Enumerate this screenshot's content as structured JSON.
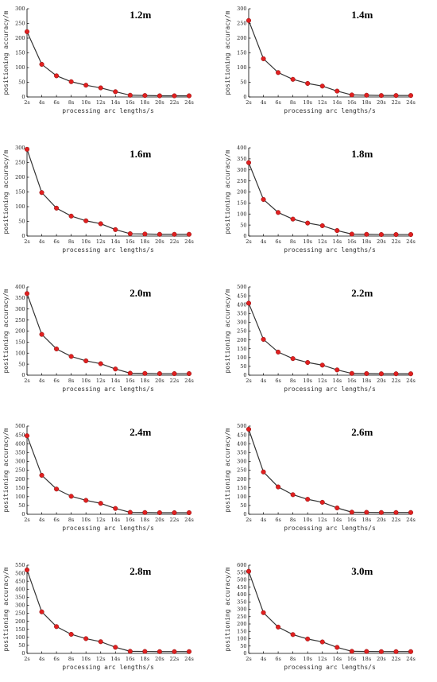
{
  "colors": {
    "line": "#333333",
    "marker_fill": "#e02020",
    "marker_edge": "#8b1010",
    "axis": "#000000"
  },
  "chart_data": [
    {
      "type": "line",
      "title": "1.2m",
      "xlabel": "processing arc lengths/s",
      "ylabel": "positioning accuracy/m",
      "categories": [
        "2s",
        "4s",
        "6s",
        "8s",
        "10s",
        "12s",
        "14s",
        "16s",
        "18s",
        "20s",
        "22s",
        "24s"
      ],
      "ylim": [
        0,
        300
      ],
      "yticks": [
        0,
        50,
        100,
        150,
        200,
        250,
        300
      ],
      "series": [
        {
          "values": [
            222,
            111,
            72,
            52,
            40,
            31,
            18,
            6,
            5,
            4,
            4,
            4
          ]
        }
      ],
      "grid": false
    },
    {
      "type": "line",
      "title": "1.4m",
      "xlabel": "processing arc lengths/s",
      "ylabel": "positioning accuracy/m",
      "categories": [
        "2s",
        "4s",
        "6s",
        "8s",
        "10s",
        "12s",
        "14s",
        "16s",
        "18s",
        "20s",
        "22s",
        "24s"
      ],
      "ylim": [
        0,
        300
      ],
      "yticks": [
        0,
        50,
        100,
        150,
        200,
        250,
        300
      ],
      "series": [
        {
          "values": [
            260,
            130,
            83,
            60,
            46,
            37,
            20,
            7,
            6,
            5,
            5,
            5
          ]
        }
      ],
      "grid": false
    },
    {
      "type": "line",
      "title": "1.6m",
      "xlabel": "processing arc lengths/s",
      "ylabel": "positioning accuracy/m",
      "categories": [
        "2s",
        "4s",
        "6s",
        "8s",
        "10s",
        "12s",
        "14s",
        "16s",
        "18s",
        "20s",
        "22s",
        "24s"
      ],
      "ylim": [
        0,
        300
      ],
      "yticks": [
        0,
        50,
        100,
        150,
        200,
        250,
        300
      ],
      "series": [
        {
          "values": [
            295,
            148,
            95,
            68,
            52,
            42,
            22,
            8,
            7,
            6,
            6,
            6
          ]
        }
      ],
      "grid": false
    },
    {
      "type": "line",
      "title": "1.8m",
      "xlabel": "processing arc lengths/s",
      "ylabel": "positioning accuracy/m",
      "categories": [
        "2s",
        "4s",
        "6s",
        "8s",
        "10s",
        "12s",
        "14s",
        "16s",
        "18s",
        "20s",
        "22s",
        "24s"
      ],
      "ylim": [
        0,
        400
      ],
      "yticks": [
        0,
        50,
        100,
        150,
        200,
        250,
        300,
        350,
        400
      ],
      "series": [
        {
          "values": [
            333,
            166,
            107,
            77,
            59,
            47,
            25,
            9,
            8,
            7,
            7,
            7
          ]
        }
      ],
      "grid": false
    },
    {
      "type": "line",
      "title": "2.0m",
      "xlabel": "processing arc lengths/s",
      "ylabel": "positioning accuracy/m",
      "categories": [
        "2s",
        "4s",
        "6s",
        "8s",
        "10s",
        "12s",
        "14s",
        "16s",
        "18s",
        "20s",
        "22s",
        "24s"
      ],
      "ylim": [
        0,
        400
      ],
      "yticks": [
        0,
        50,
        100,
        150,
        200,
        250,
        300,
        350,
        400
      ],
      "series": [
        {
          "values": [
            370,
            185,
            119,
            85,
            65,
            52,
            28,
            9,
            8,
            7,
            7,
            7
          ]
        }
      ],
      "grid": false
    },
    {
      "type": "line",
      "title": "2.2m",
      "xlabel": "processing arc lengths/s",
      "ylabel": "positioning accuracy/m",
      "categories": [
        "2s",
        "4s",
        "6s",
        "8s",
        "10s",
        "12s",
        "14s",
        "16s",
        "18s",
        "20s",
        "22s",
        "24s"
      ],
      "ylim": [
        0,
        500
      ],
      "yticks": [
        0,
        50,
        100,
        150,
        200,
        250,
        300,
        350,
        400,
        450,
        500
      ],
      "series": [
        {
          "values": [
            408,
            203,
            131,
            94,
            72,
            57,
            30,
            10,
            9,
            8,
            8,
            8
          ]
        }
      ],
      "grid": false
    },
    {
      "type": "line",
      "title": "2.4m",
      "xlabel": "processing arc lengths/s",
      "ylabel": "positioning accuracy/m",
      "categories": [
        "2s",
        "4s",
        "6s",
        "8s",
        "10s",
        "12s",
        "14s",
        "16s",
        "18s",
        "20s",
        "22s",
        "24s"
      ],
      "ylim": [
        0,
        500
      ],
      "yticks": [
        0,
        50,
        100,
        150,
        200,
        250,
        300,
        350,
        400,
        450,
        500
      ],
      "series": [
        {
          "values": [
            445,
            221,
            143,
            102,
            79,
            62,
            33,
            11,
            10,
            9,
            9,
            9
          ]
        }
      ],
      "grid": false
    },
    {
      "type": "line",
      "title": "2.6m",
      "xlabel": "processing arc lengths/s",
      "ylabel": "positioning accuracy/m",
      "categories": [
        "2s",
        "4s",
        "6s",
        "8s",
        "10s",
        "12s",
        "14s",
        "16s",
        "18s",
        "20s",
        "22s",
        "24s"
      ],
      "ylim": [
        0,
        500
      ],
      "yticks": [
        0,
        50,
        100,
        150,
        200,
        250,
        300,
        350,
        400,
        450,
        500
      ],
      "series": [
        {
          "values": [
            482,
            240,
            155,
            111,
            85,
            68,
            36,
            12,
            11,
            10,
            10,
            10
          ]
        }
      ],
      "grid": false
    },
    {
      "type": "line",
      "title": "2.8m",
      "xlabel": "processing arc lengths/s",
      "ylabel": "positioning accuracy/m",
      "categories": [
        "2s",
        "4s",
        "6s",
        "8s",
        "10s",
        "12s",
        "14s",
        "16s",
        "18s",
        "20s",
        "22s",
        "24s"
      ],
      "ylim": [
        0,
        550
      ],
      "yticks": [
        0,
        50,
        100,
        150,
        200,
        250,
        300,
        350,
        400,
        450,
        500,
        550
      ],
      "series": [
        {
          "values": [
            520,
            259,
            167,
            119,
            92,
            73,
            38,
            13,
            12,
            11,
            11,
            11
          ]
        }
      ],
      "grid": false
    },
    {
      "type": "line",
      "title": "3.0m",
      "xlabel": "processing arc lengths/s",
      "ylabel": "positioning accuracy/m",
      "categories": [
        "2s",
        "4s",
        "6s",
        "8s",
        "10s",
        "12s",
        "14s",
        "16s",
        "18s",
        "20s",
        "22s",
        "24s"
      ],
      "ylim": [
        0,
        600
      ],
      "yticks": [
        0,
        50,
        100,
        150,
        200,
        250,
        300,
        350,
        400,
        450,
        500,
        550,
        600
      ],
      "series": [
        {
          "values": [
            558,
            277,
            179,
            128,
            98,
            78,
            41,
            14,
            13,
            12,
            12,
            12
          ]
        }
      ],
      "grid": false
    }
  ]
}
